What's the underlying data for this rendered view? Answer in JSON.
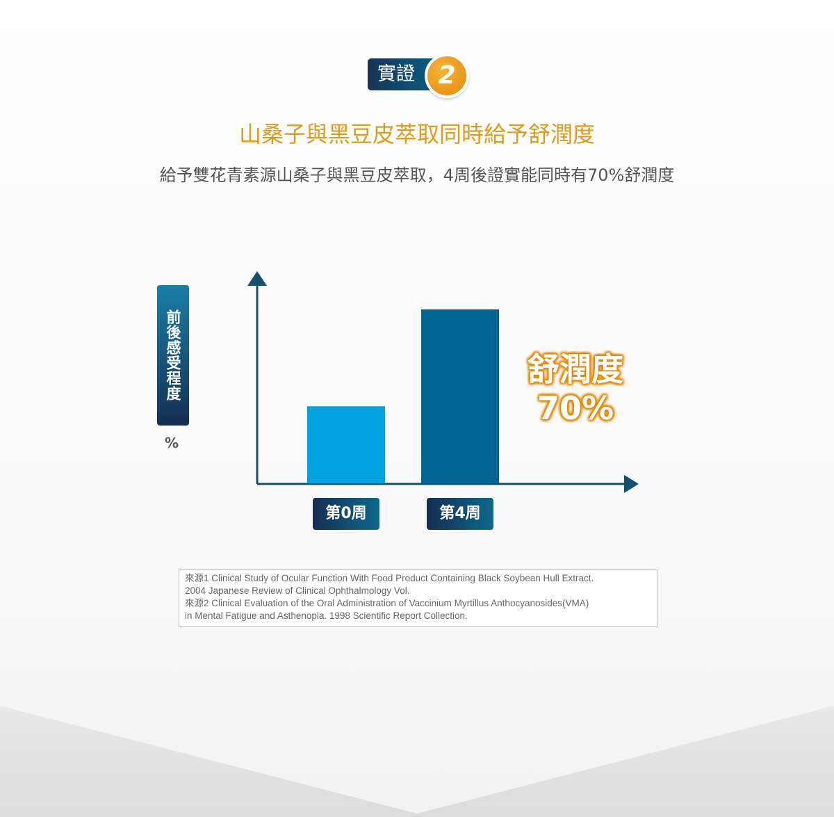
{
  "badge": {
    "label": "實證",
    "number": "2"
  },
  "title": "山桑子與黑豆皮萃取同時給予舒潤度",
  "subtitle": "給予雙花青素源山桑子與黑豆皮萃取，4周後證實能同時有70%舒潤度",
  "colors": {
    "accent": "#e09a1a",
    "bar_week0": "#00a3e0",
    "bar_week4": "#006494",
    "axis": "#12506b"
  },
  "chart_data": {
    "type": "bar",
    "categories": [
      "第0周",
      "第4周"
    ],
    "values": [
      31,
      70
    ],
    "ylabel": "前後感受程度",
    "yunit": "%",
    "ylim": [
      0,
      84
    ],
    "grid": false,
    "annotation": {
      "line1": "舒潤度",
      "line2": "70%"
    }
  },
  "references": [
    "來源1 Clinical Study of Ocular Function With Food Product Containing Black Soybean Hull Extract.",
    "2004 Japanese Review of Clinical Ophthalmology Vol.",
    "來源2  Clinical Evaluation of the Oral Administration of Vaccinium Myrtillus Anthocyanosides(VMA)",
    "in Mental Fatigue and Asthenopia. 1998 Scientific Report Collection."
  ]
}
